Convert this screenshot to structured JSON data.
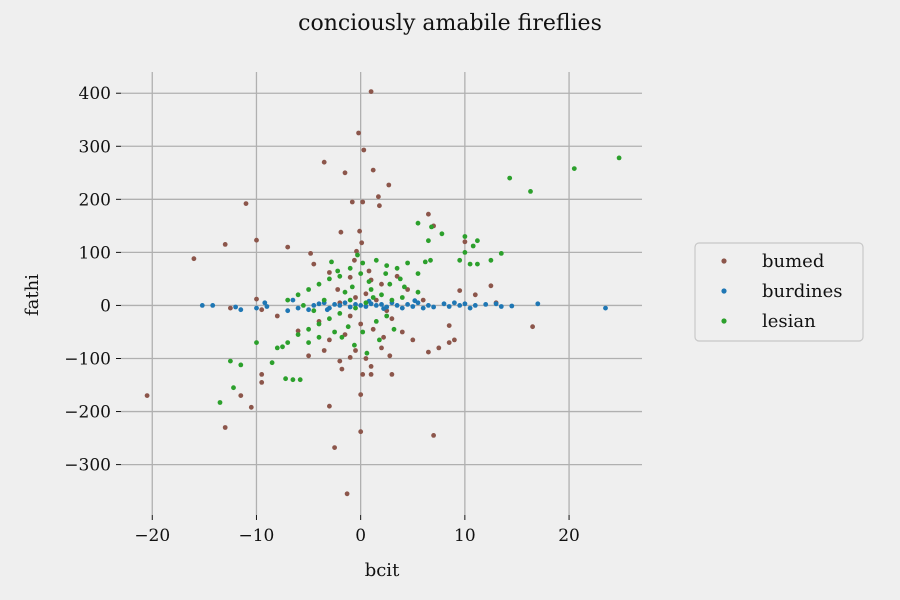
{
  "chart_data": {
    "type": "scatter",
    "title": "conciously amabile fireflies",
    "xlabel": "bcit",
    "ylabel": "fathi",
    "xlim": [
      -23,
      27
    ],
    "ylim": [
      -395,
      440
    ],
    "xticks": [
      -20,
      -10,
      0,
      10,
      20
    ],
    "yticks": [
      -300,
      -200,
      -100,
      0,
      100,
      200,
      300,
      400
    ],
    "xtick_labels": [
      "−20",
      "−10",
      "0",
      "10",
      "20"
    ],
    "ytick_labels": [
      "−300",
      "−200",
      "−100",
      "0",
      "100",
      "200",
      "300",
      "400"
    ],
    "grid": true,
    "legend_position": "right",
    "series": [
      {
        "name": "bumed",
        "color": "#8c564b",
        "points": [
          [
            1,
            403
          ],
          [
            -0.2,
            325
          ],
          [
            0.3,
            293
          ],
          [
            -3.5,
            270
          ],
          [
            1.2,
            255
          ],
          [
            -1.5,
            250
          ],
          [
            2.7,
            227
          ],
          [
            -11,
            192
          ],
          [
            -0.8,
            195
          ],
          [
            0.2,
            195
          ],
          [
            1.7,
            205
          ],
          [
            1.8,
            188
          ],
          [
            6.5,
            172
          ],
          [
            -13,
            115
          ],
          [
            -10,
            123
          ],
          [
            -16,
            88
          ],
          [
            -0.1,
            140
          ],
          [
            -1.9,
            138
          ],
          [
            0.1,
            118
          ],
          [
            -4.8,
            98
          ],
          [
            -7,
            110
          ],
          [
            -0.4,
            102
          ],
          [
            10,
            120
          ],
          [
            7,
            150
          ],
          [
            12.5,
            37
          ],
          [
            9.5,
            28
          ],
          [
            -10,
            12
          ],
          [
            11,
            20
          ],
          [
            -12.5,
            -5
          ],
          [
            -9.5,
            -8
          ],
          [
            8.5,
            -38
          ],
          [
            16.5,
            -40
          ],
          [
            13,
            5
          ],
          [
            -8,
            -20
          ],
          [
            -6,
            -48
          ],
          [
            -3.5,
            -85
          ],
          [
            -1,
            -98
          ],
          [
            -5,
            -95
          ],
          [
            0.5,
            -100
          ],
          [
            2,
            -80
          ],
          [
            3,
            -130
          ],
          [
            1,
            -130
          ],
          [
            -2,
            -105
          ],
          [
            6.5,
            -88
          ],
          [
            8.5,
            -70
          ],
          [
            7.5,
            -80
          ],
          [
            9,
            -65
          ],
          [
            -9.5,
            -145
          ],
          [
            -9.5,
            -130
          ],
          [
            -11.5,
            -170
          ],
          [
            -10.5,
            -192
          ],
          [
            -13,
            -230
          ],
          [
            -20.5,
            -170
          ],
          [
            -3,
            -190
          ],
          [
            -2.5,
            -268
          ],
          [
            0,
            -238
          ],
          [
            0,
            -168
          ],
          [
            7,
            -245
          ],
          [
            -1.3,
            -355
          ],
          [
            -4.5,
            78
          ],
          [
            -3,
            62
          ],
          [
            -1,
            53
          ],
          [
            1,
            48
          ],
          [
            2,
            40
          ],
          [
            3.5,
            55
          ],
          [
            4.5,
            30
          ],
          [
            0.5,
            22
          ],
          [
            -0.5,
            15
          ],
          [
            1.5,
            10
          ],
          [
            -2,
            5
          ],
          [
            2.5,
            -10
          ],
          [
            -1,
            -20
          ],
          [
            0,
            -35
          ],
          [
            1.2,
            -45
          ],
          [
            -1.5,
            -55
          ],
          [
            2.2,
            -60
          ],
          [
            -3,
            -65
          ],
          [
            3,
            -25
          ],
          [
            0.8,
            65
          ],
          [
            -0.6,
            85
          ],
          [
            -2.2,
            30
          ],
          [
            4,
            -50
          ],
          [
            5,
            -65
          ],
          [
            -4,
            -30
          ],
          [
            1,
            -115
          ],
          [
            0.2,
            -130
          ],
          [
            -0.5,
            -85
          ],
          [
            2.8,
            -95
          ],
          [
            -1.8,
            -120
          ],
          [
            6,
            10
          ]
        ]
      },
      {
        "name": "burdines",
        "color": "#1f77b4",
        "points": [
          [
            -15.2,
            0
          ],
          [
            -14.2,
            0
          ],
          [
            -11.5,
            -8
          ],
          [
            -12,
            -3
          ],
          [
            -10,
            -5
          ],
          [
            -9.2,
            5
          ],
          [
            -9,
            -2
          ],
          [
            -7,
            -10
          ],
          [
            -6.5,
            10
          ],
          [
            -6,
            -5
          ],
          [
            -5,
            -8
          ],
          [
            -4.5,
            0
          ],
          [
            -4,
            3
          ],
          [
            -3.5,
            5
          ],
          [
            -3,
            -5
          ],
          [
            -2.5,
            2
          ],
          [
            -2,
            0
          ],
          [
            -1.5,
            5
          ],
          [
            -1,
            -3
          ],
          [
            -0.5,
            2
          ],
          [
            0,
            0
          ],
          [
            0.5,
            -2
          ],
          [
            1,
            3
          ],
          [
            1.5,
            0
          ],
          [
            2,
            2
          ],
          [
            2.5,
            -3
          ],
          [
            3,
            5
          ],
          [
            3.5,
            0
          ],
          [
            4,
            -5
          ],
          [
            4.5,
            2
          ],
          [
            5,
            -2
          ],
          [
            5.5,
            5
          ],
          [
            6,
            -5
          ],
          [
            6.5,
            0
          ],
          [
            7,
            -3
          ],
          [
            8,
            3
          ],
          [
            8.5,
            -2
          ],
          [
            9,
            5
          ],
          [
            9.5,
            0
          ],
          [
            10,
            3
          ],
          [
            10.5,
            -5
          ],
          [
            11,
            0
          ],
          [
            12,
            2
          ],
          [
            13,
            3
          ],
          [
            13.5,
            -2
          ],
          [
            14.5,
            -1
          ],
          [
            17,
            3
          ],
          [
            23.5,
            -5
          ],
          [
            -3.2,
            -8
          ],
          [
            0.8,
            8
          ],
          [
            2.2,
            -6
          ],
          [
            5.2,
            9
          ]
        ]
      },
      {
        "name": "lesian",
        "color": "#2ca02c",
        "points": [
          [
            24.8,
            278
          ],
          [
            20.5,
            258
          ],
          [
            14.3,
            240
          ],
          [
            16.3,
            215
          ],
          [
            5.5,
            155
          ],
          [
            6.8,
            148
          ],
          [
            7.8,
            135
          ],
          [
            6.5,
            122
          ],
          [
            10,
            130
          ],
          [
            11.2,
            122
          ],
          [
            10.8,
            112
          ],
          [
            10,
            100
          ],
          [
            13.5,
            98
          ],
          [
            12.5,
            85
          ],
          [
            9.5,
            85
          ],
          [
            10.5,
            78
          ],
          [
            11.2,
            78
          ],
          [
            6.7,
            85
          ],
          [
            6.2,
            82
          ],
          [
            4.5,
            80
          ],
          [
            5.5,
            60
          ],
          [
            3.5,
            70
          ],
          [
            2.5,
            75
          ],
          [
            1.5,
            85
          ],
          [
            -1,
            70
          ],
          [
            0,
            60
          ],
          [
            -2,
            55
          ],
          [
            -3,
            50
          ],
          [
            -4,
            40
          ],
          [
            -5,
            30
          ],
          [
            -6,
            20
          ],
          [
            -7,
            10
          ],
          [
            1,
            30
          ],
          [
            2,
            20
          ],
          [
            3,
            10
          ],
          [
            4,
            15
          ],
          [
            -1,
            10
          ],
          [
            0.5,
            5
          ],
          [
            -0.5,
            -5
          ],
          [
            -2,
            -15
          ],
          [
            -3,
            -25
          ],
          [
            -4,
            -35
          ],
          [
            -5,
            -45
          ],
          [
            -6,
            -55
          ],
          [
            -7,
            -70
          ],
          [
            -8,
            -80
          ],
          [
            -10,
            -70
          ],
          [
            -12.5,
            -105
          ],
          [
            -11.5,
            -112
          ],
          [
            -6.5,
            -140
          ],
          [
            -7.2,
            -138
          ],
          [
            -5.8,
            -140
          ],
          [
            -12.2,
            -155
          ],
          [
            -13.5,
            -183
          ],
          [
            -8.5,
            -108
          ],
          [
            -7.5,
            -78
          ],
          [
            -5,
            -70
          ],
          [
            -4,
            -60
          ],
          [
            1.5,
            -30
          ],
          [
            2.5,
            -20
          ],
          [
            0.2,
            -50
          ],
          [
            -1.2,
            -40
          ],
          [
            -2.5,
            -50
          ],
          [
            0.8,
            45
          ],
          [
            -0.8,
            35
          ],
          [
            1.2,
            15
          ],
          [
            -1.5,
            25
          ],
          [
            2.8,
            40
          ],
          [
            3.8,
            50
          ],
          [
            0.2,
            80
          ],
          [
            -0.3,
            95
          ],
          [
            -2.8,
            82
          ],
          [
            4.2,
            35
          ],
          [
            5.5,
            25
          ],
          [
            -3.5,
            10
          ],
          [
            -4.5,
            -10
          ],
          [
            -5.5,
            0
          ],
          [
            3.2,
            -45
          ],
          [
            1.8,
            -65
          ],
          [
            -0.6,
            -75
          ],
          [
            0.6,
            -90
          ],
          [
            -1.8,
            -60
          ],
          [
            2.4,
            60
          ],
          [
            -2.2,
            65
          ]
        ]
      }
    ]
  }
}
